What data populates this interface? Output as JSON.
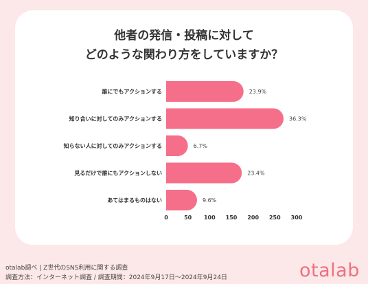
{
  "title_line1": "他者の発信・投稿に対して",
  "title_line2": "どのような関わり方をしていますか？",
  "chart_data": {
    "type": "bar",
    "orientation": "horizontal",
    "categories": [
      "誰にでもアクションする",
      "知り合いに対してのみアクションする",
      "知らない人に対してのみアクションする",
      "見るだけで誰にもアクションしない",
      "あてはまるものはない"
    ],
    "values": [
      178,
      270,
      50,
      174,
      71
    ],
    "data_labels": [
      "23.9%",
      "36.3%",
      "6.7%",
      "23.4%",
      "9.6%"
    ],
    "xticks": [
      0,
      50,
      100,
      150,
      200,
      250,
      300
    ],
    "xlim": [
      0,
      300
    ],
    "bar_color": "#f56f8a",
    "grid": false
  },
  "footer": {
    "line1": "otalab調べ | Z世代のSNS利用に関する調査",
    "line2": "調査方法：インターネット調査 / 調査期間：2024年9月17日〜2024年9月24日"
  },
  "logo_text": "otalab"
}
